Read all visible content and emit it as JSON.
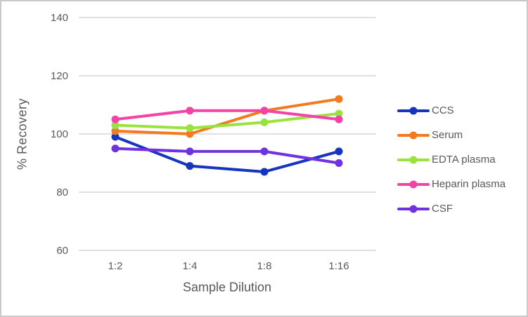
{
  "frame": {
    "background": "#ffffff",
    "border_color": "#c9c9c9"
  },
  "chart_data": {
    "type": "line",
    "title": "",
    "xlabel": "Sample Dilution",
    "ylabel": "% Recovery",
    "categories": [
      "1:2",
      "1:4",
      "1:8",
      "1:16"
    ],
    "y_ticks": [
      60,
      80,
      100,
      120,
      140
    ],
    "ylim": [
      60,
      140
    ],
    "grid": true,
    "gridline_color": "#d6d6d6",
    "tick_label_color": "#595959",
    "axis_title_color": "#595959",
    "legend_position": "right",
    "series": [
      {
        "name": "CCS",
        "color": "#1535be",
        "values": [
          99,
          89,
          87,
          94
        ]
      },
      {
        "name": "Serum",
        "color": "#f37a20",
        "values": [
          101,
          100,
          108,
          112
        ]
      },
      {
        "name": "EDTA plasma",
        "color": "#9ae23e",
        "values": [
          103,
          102,
          104,
          107
        ]
      },
      {
        "name": "Heparin plasma",
        "color": "#f443a6",
        "values": [
          105,
          108,
          108,
          105
        ]
      },
      {
        "name": "CSF",
        "color": "#7031e0",
        "values": [
          95,
          94,
          94,
          90
        ]
      }
    ]
  }
}
